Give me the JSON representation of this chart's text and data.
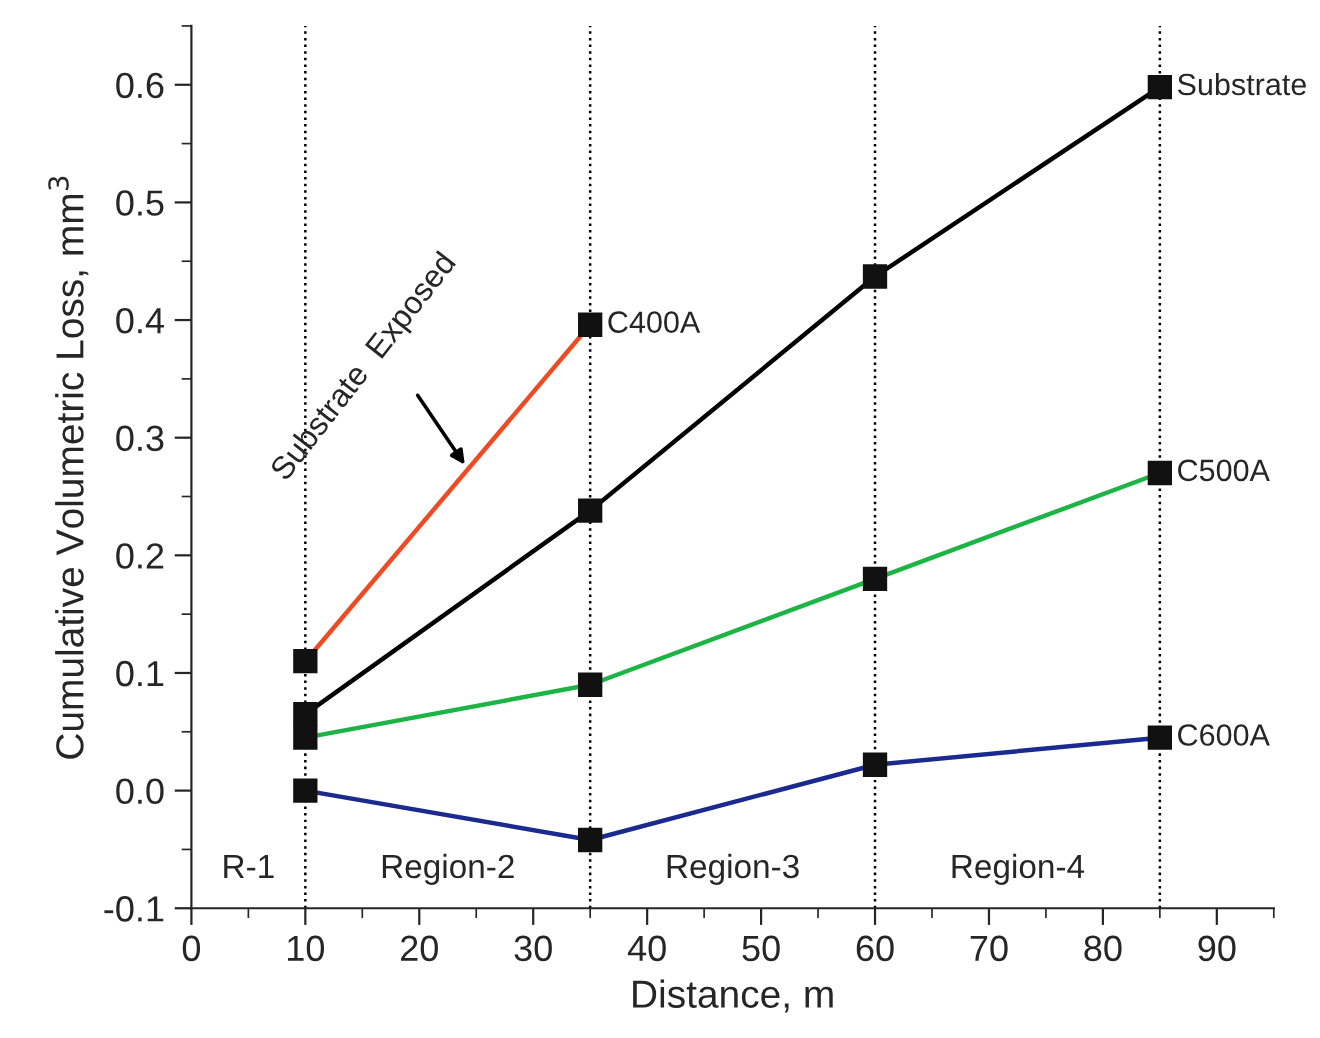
{
  "chart_data": {
    "type": "line",
    "xlabel": "Distance, m",
    "ylabel": "Cumulative Volumetric Loss, mm$^{3}$",
    "series": [
      {
        "name": "Substrate",
        "color": "#000000",
        "x": [
          10,
          35,
          60,
          85
        ],
        "values": [
          0.065,
          0.238,
          0.437,
          0.598
        ]
      },
      {
        "name": "C400A",
        "color": "#f04a23",
        "x": [
          10,
          35
        ],
        "values": [
          0.11,
          0.396
        ]
      },
      {
        "name": "C500A",
        "color": "#1db446",
        "x": [
          10,
          35,
          60,
          85
        ],
        "values": [
          0.045,
          0.09,
          0.18,
          0.27
        ]
      },
      {
        "name": "C600A",
        "color": "#1b2a8f",
        "x": [
          10,
          35,
          60,
          85
        ],
        "values": [
          0.0,
          -0.042,
          0.022,
          0.045
        ]
      }
    ],
    "xlim": [
      0,
      95
    ],
    "xticks": [
      0,
      10,
      20,
      30,
      40,
      50,
      60,
      70,
      80,
      90
    ],
    "ylim": [
      -0.1,
      0.65
    ],
    "yticks": [
      {
        "value": -0.1,
        "label": "-0.1"
      },
      {
        "value": 0.0,
        "label": "0.0"
      },
      0.1,
      0.2,
      0.3,
      0.4,
      0.5,
      0.6
    ],
    "ref_lines": [
      {
        "axis": "x",
        "value": 10,
        "line_style": "dotted",
        "color": "#000000"
      },
      {
        "axis": "x",
        "value": 35,
        "line_style": "dotted",
        "color": "#000000"
      },
      {
        "axis": "x",
        "value": 60,
        "line_style": "dotted",
        "color": "#000000"
      },
      {
        "axis": "x",
        "value": 85,
        "line_style": "dotted",
        "color": "#000000"
      }
    ],
    "annotations": [
      {
        "text": "Substrate  Exposed",
        "x": 24,
        "y": 0.277
      },
      "R-1",
      "Region-2",
      "Region-3",
      "Region-4"
    ],
    "marker": "square",
    "line_style": "solid",
    "grid": false,
    "legend": false
  }
}
